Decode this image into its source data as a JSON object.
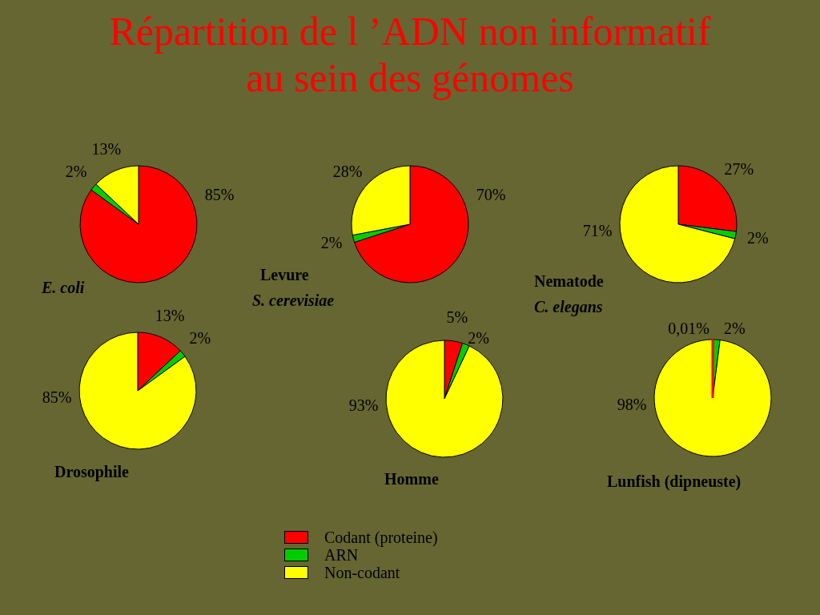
{
  "chart_data": [
    {
      "type": "other",
      "title": "Répartition de l ’ADN non informatif au sein des génomes"
    },
    {
      "type": "pie",
      "title": "E. coli",
      "categories": [
        "Codant (proteine)",
        "ARN",
        "Non-codant"
      ],
      "values": [
        85,
        2,
        13
      ],
      "colors": [
        "#ff0000",
        "#00cc00",
        "#ffff00"
      ],
      "value_labels": [
        "85%",
        "2%",
        "13%"
      ],
      "legend": "bottom"
    },
    {
      "type": "pie",
      "title": "Levure",
      "subtitle": "S. cerevisiae",
      "categories": [
        null,
        null,
        null
      ],
      "values": [
        70,
        2,
        28
      ],
      "colors": [
        "#ff0000",
        "#00cc00",
        "#ffff00"
      ],
      "value_labels": [
        "70%",
        "2%",
        "28%"
      ]
    },
    {
      "type": "pie",
      "title": "Nematode",
      "subtitle": "C. elegans",
      "categories": [
        null,
        null,
        null
      ],
      "values": [
        27,
        2,
        71
      ],
      "colors": [
        "#ff0000",
        "#00cc00",
        "#ffff00"
      ],
      "value_labels": [
        "27%",
        "2%",
        "71%"
      ]
    },
    {
      "type": "pie",
      "title": "Drosophile",
      "categories": [
        null,
        null,
        null
      ],
      "values": [
        13,
        2,
        85
      ],
      "colors": [
        "#ff0000",
        "#00cc00",
        "#ffff00"
      ],
      "value_labels": [
        "13%",
        "2%",
        "85%"
      ]
    },
    {
      "type": "pie",
      "title": "Homme",
      "categories": [
        null,
        null,
        null
      ],
      "values": [
        5,
        2,
        93
      ],
      "colors": [
        "#ff0000",
        "#00cc00",
        "#ffff00"
      ],
      "value_labels": [
        "5%",
        "2%",
        "93%"
      ]
    },
    {
      "type": "pie",
      "title": "Lunfish (dipneuste)",
      "categories": [
        null,
        null,
        null
      ],
      "values": [
        0.01,
        2,
        98
      ],
      "colors": [
        "#ff0000",
        "#00cc00",
        "#ffff00"
      ],
      "value_labels": [
        "0,01%",
        "2%",
        "98%"
      ]
    }
  ]
}
